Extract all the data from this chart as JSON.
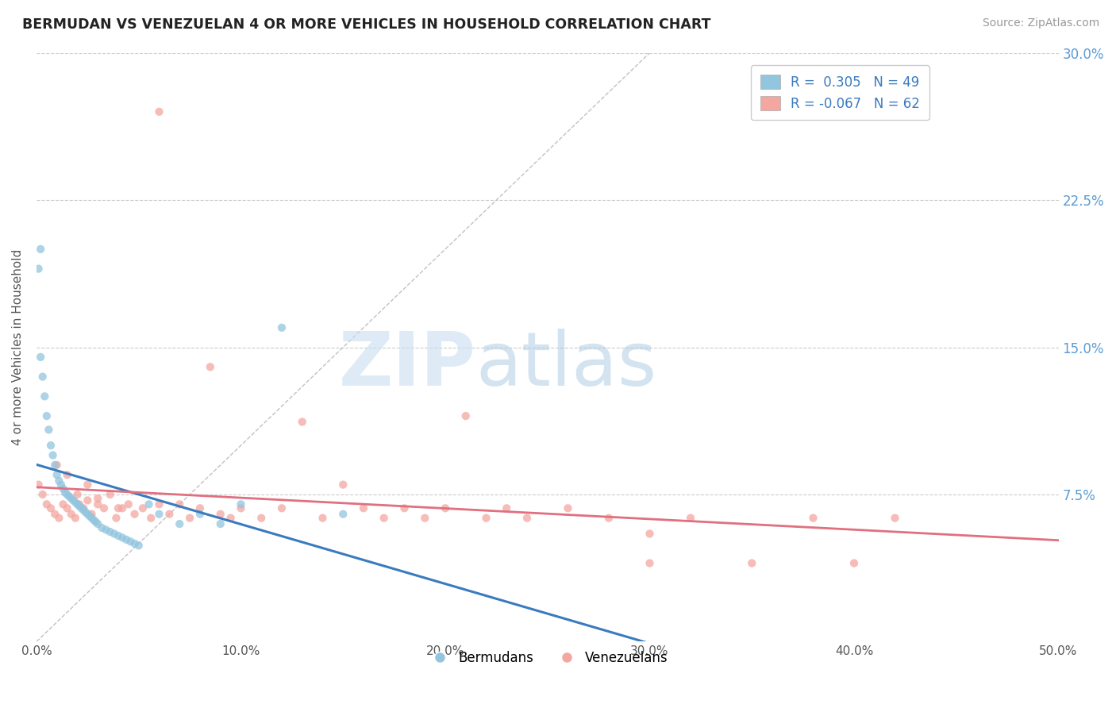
{
  "title": "BERMUDAN VS VENEZUELAN 4 OR MORE VEHICLES IN HOUSEHOLD CORRELATION CHART",
  "source": "Source: ZipAtlas.com",
  "ylabel": "4 or more Vehicles in Household",
  "xlim": [
    0.0,
    0.5
  ],
  "ylim": [
    0.0,
    0.3
  ],
  "xticks": [
    0.0,
    0.1,
    0.2,
    0.3,
    0.4,
    0.5
  ],
  "yticks": [
    0.0,
    0.075,
    0.15,
    0.225,
    0.3
  ],
  "xtick_labels": [
    "0.0%",
    "10.0%",
    "20.0%",
    "30.0%",
    "40.0%",
    "50.0%"
  ],
  "ytick_labels_right": [
    "",
    "7.5%",
    "15.0%",
    "22.5%",
    "30.0%"
  ],
  "bermudan_R": 0.305,
  "bermudan_N": 49,
  "venezuelan_R": -0.067,
  "venezuelan_N": 62,
  "blue_color": "#92c5de",
  "pink_color": "#f4a6a0",
  "blue_line_color": "#3a7bbf",
  "pink_line_color": "#e07080",
  "dot_size": 55,
  "legend_label_blue": "Bermudans",
  "legend_label_pink": "Venezuelans",
  "bermudan_x": [
    0.001,
    0.002,
    0.003,
    0.004,
    0.005,
    0.006,
    0.007,
    0.008,
    0.009,
    0.01,
    0.011,
    0.012,
    0.013,
    0.014,
    0.015,
    0.016,
    0.017,
    0.018,
    0.019,
    0.02,
    0.021,
    0.022,
    0.023,
    0.024,
    0.025,
    0.026,
    0.027,
    0.028,
    0.029,
    0.03,
    0.032,
    0.034,
    0.036,
    0.038,
    0.04,
    0.042,
    0.044,
    0.046,
    0.048,
    0.05,
    0.055,
    0.06,
    0.07,
    0.08,
    0.09,
    0.1,
    0.12,
    0.15,
    0.002
  ],
  "bermudan_y": [
    0.19,
    0.145,
    0.135,
    0.125,
    0.115,
    0.108,
    0.1,
    0.095,
    0.09,
    0.085,
    0.082,
    0.08,
    0.078,
    0.076,
    0.075,
    0.074,
    0.073,
    0.072,
    0.071,
    0.07,
    0.069,
    0.068,
    0.067,
    0.066,
    0.065,
    0.064,
    0.063,
    0.062,
    0.061,
    0.06,
    0.058,
    0.057,
    0.056,
    0.055,
    0.054,
    0.053,
    0.052,
    0.051,
    0.05,
    0.049,
    0.07,
    0.065,
    0.06,
    0.065,
    0.06,
    0.07,
    0.16,
    0.065,
    0.2
  ],
  "venezuelan_x": [
    0.001,
    0.003,
    0.005,
    0.007,
    0.009,
    0.011,
    0.013,
    0.015,
    0.017,
    0.019,
    0.021,
    0.023,
    0.025,
    0.027,
    0.03,
    0.033,
    0.036,
    0.039,
    0.042,
    0.045,
    0.048,
    0.052,
    0.056,
    0.06,
    0.065,
    0.07,
    0.075,
    0.08,
    0.085,
    0.09,
    0.095,
    0.1,
    0.11,
    0.12,
    0.13,
    0.14,
    0.15,
    0.16,
    0.17,
    0.18,
    0.19,
    0.2,
    0.21,
    0.22,
    0.23,
    0.24,
    0.26,
    0.28,
    0.3,
    0.32,
    0.35,
    0.38,
    0.4,
    0.42,
    0.01,
    0.015,
    0.02,
    0.025,
    0.03,
    0.04,
    0.06,
    0.3
  ],
  "venezuelan_y": [
    0.08,
    0.075,
    0.07,
    0.068,
    0.065,
    0.063,
    0.07,
    0.068,
    0.065,
    0.063,
    0.07,
    0.068,
    0.072,
    0.065,
    0.07,
    0.068,
    0.075,
    0.063,
    0.068,
    0.07,
    0.065,
    0.068,
    0.063,
    0.07,
    0.065,
    0.07,
    0.063,
    0.068,
    0.14,
    0.065,
    0.063,
    0.068,
    0.063,
    0.068,
    0.112,
    0.063,
    0.08,
    0.068,
    0.063,
    0.068,
    0.063,
    0.068,
    0.115,
    0.063,
    0.068,
    0.063,
    0.068,
    0.063,
    0.055,
    0.063,
    0.04,
    0.063,
    0.04,
    0.063,
    0.09,
    0.085,
    0.075,
    0.08,
    0.073,
    0.068,
    0.27,
    0.04
  ]
}
